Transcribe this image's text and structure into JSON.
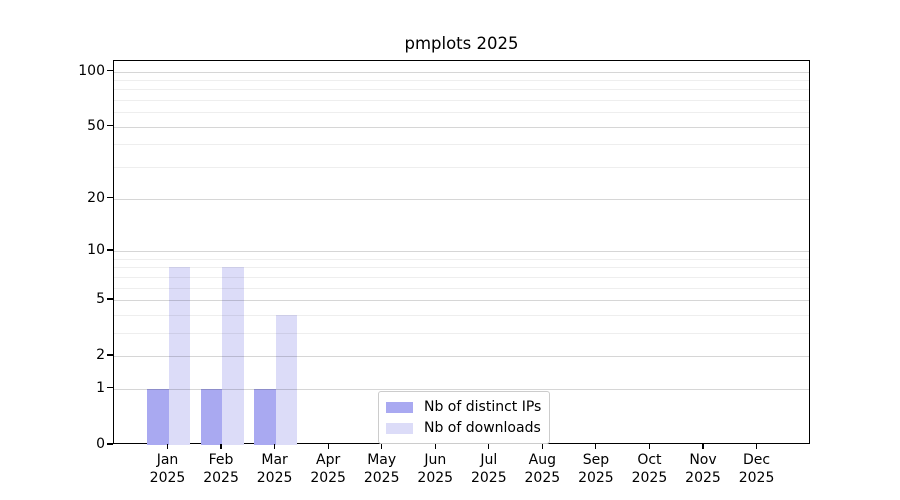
{
  "chart_data": {
    "type": "bar",
    "title": "pmplots 2025",
    "categories": [
      "Jan 2025",
      "Feb 2025",
      "Mar 2025",
      "Apr 2025",
      "May 2025",
      "Jun 2025",
      "Jul 2025",
      "Aug 2025",
      "Sep 2025",
      "Oct 2025",
      "Nov 2025",
      "Dec 2025"
    ],
    "x_tick_labels": [
      {
        "month": "Jan",
        "year": "2025"
      },
      {
        "month": "Feb",
        "year": "2025"
      },
      {
        "month": "Mar",
        "year": "2025"
      },
      {
        "month": "Apr",
        "year": "2025"
      },
      {
        "month": "May",
        "year": "2025"
      },
      {
        "month": "Jun",
        "year": "2025"
      },
      {
        "month": "Jul",
        "year": "2025"
      },
      {
        "month": "Aug",
        "year": "2025"
      },
      {
        "month": "Sep",
        "year": "2025"
      },
      {
        "month": "Oct",
        "year": "2025"
      },
      {
        "month": "Nov",
        "year": "2025"
      },
      {
        "month": "Dec",
        "year": "2025"
      }
    ],
    "series": [
      {
        "name": "Nb of distinct IPs",
        "color": "#a9a9f1",
        "values": [
          1,
          1,
          1,
          0,
          0,
          0,
          0,
          0,
          0,
          0,
          0,
          0
        ]
      },
      {
        "name": "Nb of downloads",
        "color": "#dcdcf8",
        "values": [
          8,
          8,
          4,
          0,
          0,
          0,
          0,
          0,
          0,
          0,
          0,
          0
        ]
      }
    ],
    "y_scale": "log10(1+y)",
    "y_major_ticks": [
      0,
      1,
      2,
      5,
      10,
      20,
      50,
      100
    ],
    "y_minor_ticks": [
      3,
      4,
      6,
      7,
      8,
      9,
      30,
      40,
      60,
      70,
      80,
      90
    ],
    "ylim": [
      0,
      114
    ],
    "xlabel": "",
    "ylabel": "",
    "grid": true,
    "legend_position": "lower-center"
  }
}
